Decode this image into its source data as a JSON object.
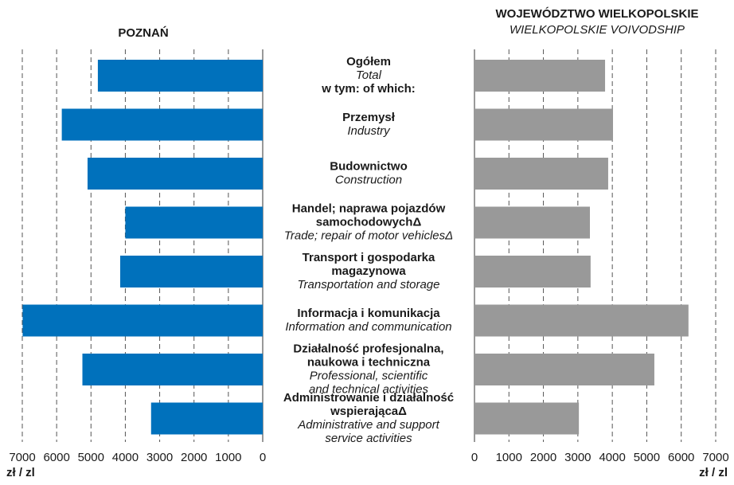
{
  "chart_data": [
    {
      "type": "bar",
      "orientation": "horizontal",
      "direction": "reversed",
      "title": "POZNAŃ",
      "categories": [
        "Ogółem",
        "Przemysł",
        "Budownictwo",
        "Handel; naprawa pojazdów\nsamochodowychΔ",
        "Transport i gospodarka\nmagazynowa",
        "Informacja i komunikacja",
        "Działalność profesjonalna,\nnaukowa i techniczna",
        "Administrowanie i działalność\nwspierającaΔ"
      ],
      "categories_en": [
        "Total",
        "Industry",
        "Construction",
        "Trade; repair of motor vehiclesΔ",
        "Transportation and storage",
        "Information and communication",
        "Professional, scientific\nand technical activities",
        "Administrative and support\nservice activities"
      ],
      "note": "w tym:   of which:",
      "values": [
        4800,
        5850,
        5100,
        4000,
        4150,
        6990,
        5250,
        3250
      ],
      "color": "#0071bc",
      "xlim": [
        0,
        7000
      ],
      "xticks": [
        0,
        1000,
        2000,
        3000,
        4000,
        5000,
        6000,
        7000
      ],
      "x_label": "zł / zl",
      "grid": true
    },
    {
      "type": "bar",
      "orientation": "horizontal",
      "direction": "normal",
      "title": "WOJEWÓDZTWO WIELKOPOLSKIE",
      "subtitle": "WIELKOPOLSKIE VOIVODSHIP",
      "values": [
        3790,
        4020,
        3880,
        3350,
        3370,
        6210,
        5220,
        3030
      ],
      "color": "#999999",
      "xlim": [
        0,
        7000
      ],
      "xticks": [
        0,
        1000,
        2000,
        3000,
        4000,
        5000,
        6000,
        7000
      ],
      "x_label": "zł / zl",
      "grid": true
    }
  ]
}
